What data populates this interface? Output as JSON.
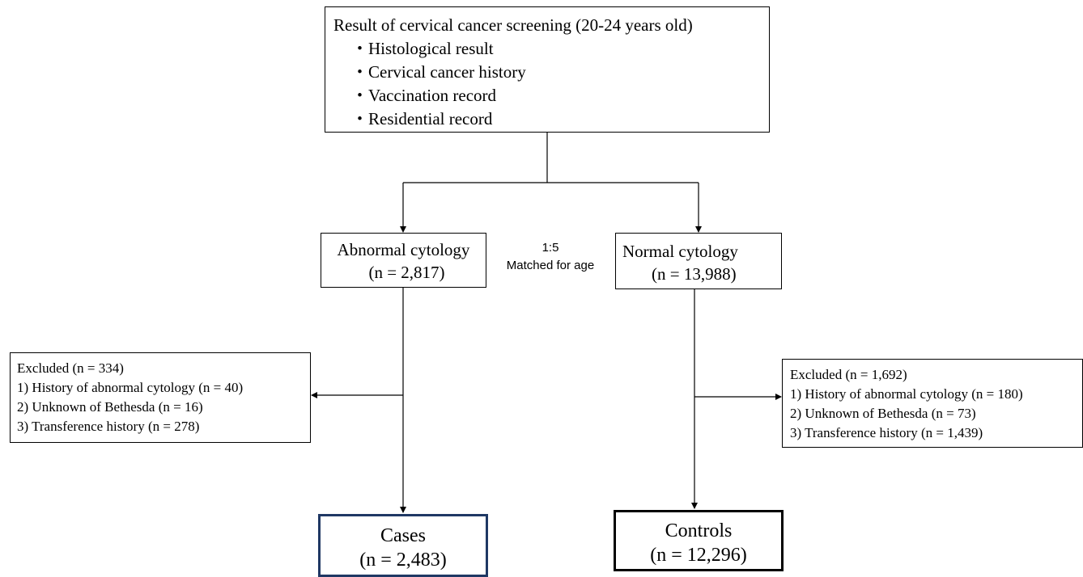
{
  "screening": {
    "title": "Result of cervical cancer screening  (20-24 years old)",
    "items": [
      "・Histological result",
      "・Cervical cancer history",
      "・Vaccination record",
      "・Residential record"
    ]
  },
  "abnormal": {
    "label": "Abnormal cytology",
    "n": "(n = 2,817)"
  },
  "normal": {
    "label": "Normal cytology",
    "n": "(n = 13,988)"
  },
  "matching": {
    "ratio": "1:5",
    "label": "Matched for age"
  },
  "excluded_left": {
    "title": "Excluded (n = 334)",
    "items": [
      "1) History of abnormal  cytology (n = 40)",
      "2) Unknown of Bethesda  (n = 16)",
      "3) Transference history (n = 278)"
    ]
  },
  "excluded_right": {
    "title": "Excluded (n = 1,692)",
    "items": [
      "1) History of abnormal cytology (n = 180)",
      "2) Unknown of Bethesda (n = 73)",
      "3) Transference history (n = 1,439)"
    ]
  },
  "cases": {
    "label": "Cases",
    "n": "(n = 2,483)"
  },
  "controls": {
    "label": "Controls",
    "n": "(n = 12,296)"
  },
  "colors": {
    "line": "#000000",
    "cases_border": "#1f3864",
    "controls_border": "#000000"
  }
}
